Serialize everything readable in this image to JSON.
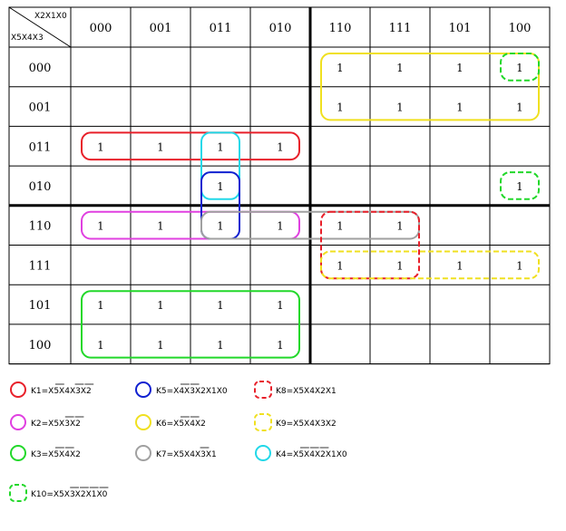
{
  "corner": {
    "top": "X2X1X0",
    "left": "X5X4X3"
  },
  "col_headers": [
    "000",
    "001",
    "011",
    "010",
    "110",
    "111",
    "101",
    "100"
  ],
  "row_headers": [
    "000",
    "001",
    "011",
    "010",
    "110",
    "111",
    "101",
    "100"
  ],
  "ones": [
    [
      0,
      4
    ],
    [
      0,
      5
    ],
    [
      0,
      6
    ],
    [
      0,
      7
    ],
    [
      1,
      4
    ],
    [
      1,
      5
    ],
    [
      1,
      6
    ],
    [
      1,
      7
    ],
    [
      2,
      0
    ],
    [
      2,
      1
    ],
    [
      2,
      2
    ],
    [
      2,
      3
    ],
    [
      3,
      2
    ],
    [
      3,
      7
    ],
    [
      4,
      0
    ],
    [
      4,
      1
    ],
    [
      4,
      2
    ],
    [
      4,
      3
    ],
    [
      4,
      4
    ],
    [
      4,
      5
    ],
    [
      5,
      4
    ],
    [
      5,
      5
    ],
    [
      5,
      6
    ],
    [
      5,
      7
    ],
    [
      6,
      0
    ],
    [
      6,
      1
    ],
    [
      6,
      2
    ],
    [
      6,
      3
    ],
    [
      7,
      0
    ],
    [
      7,
      1
    ],
    [
      7,
      2
    ],
    [
      7,
      3
    ]
  ],
  "one_text": "1",
  "groups": [
    {
      "id": "K1",
      "color": "#e8202a",
      "dashed": false,
      "cells": [
        2,
        0,
        2,
        3
      ],
      "text": "K1=X5X4X3X2",
      "bars": [
        2,
        6,
        8
      ]
    },
    {
      "id": "K2",
      "color": "#e040e0",
      "dashed": false,
      "cells": [
        4,
        0,
        4,
        3
      ],
      "text": "K2=X5X3X2",
      "bars": [
        4,
        6
      ]
    },
    {
      "id": "K3",
      "color": "#22d82a",
      "dashed": false,
      "cells": [
        6,
        0,
        7,
        3
      ],
      "text": "K3=X5X4X2",
      "bars": [
        2,
        4
      ]
    },
    {
      "id": "K4",
      "color": "#22d8e8",
      "dashed": false,
      "cells": [
        2,
        2,
        3,
        2
      ],
      "text": "K4=X5X4X2X1X0",
      "bars": [
        2,
        4,
        6
      ]
    },
    {
      "id": "K5",
      "color": "#1020d0",
      "dashed": false,
      "cells": [
        3,
        2,
        4,
        2
      ],
      "text": "K5=X4X3X2X1X0",
      "bars": [
        2,
        4
      ]
    },
    {
      "id": "K6",
      "color": "#f0e020",
      "dashed": false,
      "cells": [
        0,
        4,
        1,
        7
      ],
      "text": "K6=X5X4X2",
      "bars": [
        2,
        4
      ]
    },
    {
      "id": "K7",
      "color": "#a0a0a0",
      "dashed": false,
      "cells": [
        4,
        2,
        4,
        5
      ],
      "text": "K7=X5X4X3X1",
      "bars": [
        6
      ]
    },
    {
      "id": "K8",
      "color": "#e8202a",
      "dashed": true,
      "cells": [
        4,
        4,
        5,
        5
      ],
      "text": "K8=X5X4X2X1",
      "bars": []
    },
    {
      "id": "K9",
      "color": "#f0e020",
      "dashed": true,
      "cells": [
        5,
        4,
        5,
        7
      ],
      "text": "K9=X5X4X3X2",
      "bars": []
    },
    {
      "id": "K10",
      "color": "#22d82a",
      "dashed": true,
      "cells": [
        0,
        7,
        0,
        7
      ],
      "text": "K10=X5X3X2X1X0",
      "bars": [
        4,
        6,
        8,
        10
      ]
    },
    {
      "id": "K10b",
      "color": "#22d82a",
      "dashed": true,
      "cells": [
        3,
        7,
        3,
        7
      ],
      "text": "",
      "bars": []
    }
  ],
  "legend_order": [
    "K1",
    "K5",
    "K8",
    "K2",
    "K6",
    "K9",
    "K3",
    "K7",
    "K4",
    "K10"
  ]
}
